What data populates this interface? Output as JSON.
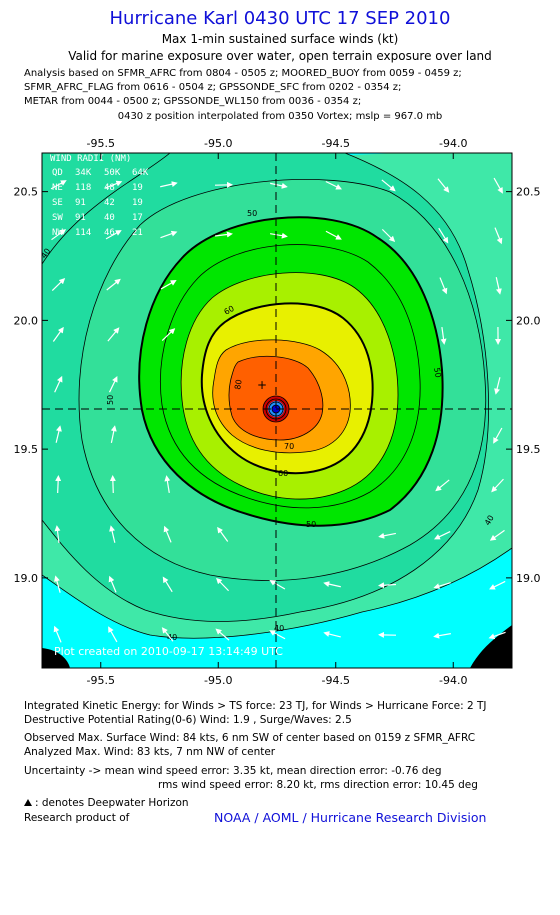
{
  "header": {
    "title": "Hurricane Karl 0430 UTC 17 SEP 2010",
    "subtitle1": "Max 1-min sustained surface winds (kt)",
    "subtitle2": "Valid for marine exposure over water, open terrain exposure over land"
  },
  "analysis_lines": [
    "Analysis based on SFMR_AFRC from 0804 - 0505 z; MOORED_BUOY from 0059 - 0459 z;",
    "SFMR_AFRC_FLAG from 0616 - 0504 z; GPSSONDE_SFC from 0202 - 0354 z;",
    "METAR from 0044 - 0500 z; GPSSONDE_WL150 from 0036 - 0354 z;"
  ],
  "position_line": "0430 z position interpolated from 0350 Vortex; mslp = 967.0 mb",
  "chart_data": {
    "type": "contour",
    "x_ticks": [
      "-95.5",
      "-95.0",
      "-94.5",
      "-94.0"
    ],
    "y_ticks": [
      "20.5",
      "20.0",
      "19.5",
      "19.0"
    ],
    "xlim": [
      -95.75,
      -93.75
    ],
    "ylim": [
      18.65,
      20.65
    ],
    "center": {
      "lon": -94.61,
      "lat": 19.67
    },
    "contour_labels": [
      "40",
      "40",
      "40",
      "40",
      "50",
      "50",
      "50",
      "60",
      "60",
      "70",
      "80"
    ],
    "contour_levels_kt": [
      30,
      40,
      50,
      60,
      64,
      70,
      80,
      90
    ],
    "fill_colors": {
      "30": "#00ffff",
      "40": "#3fe8a8",
      "50": "#00e600",
      "60": "#a8f000",
      "64": "#e8f000",
      "70": "#ffa500",
      "80": "#ff6000",
      "90": "#cc0000"
    },
    "wind_radii": {
      "title": "WIND RADII (NM)",
      "header": [
        "QD",
        "34K",
        "50K",
        "64K"
      ],
      "rows": [
        [
          "NE",
          "118",
          "48",
          "19"
        ],
        [
          "SE",
          "91",
          "42",
          "19"
        ],
        [
          "SW",
          "91",
          "40",
          "17"
        ],
        [
          "NW",
          "114",
          "46",
          "21"
        ]
      ]
    },
    "stamp": "Plot created on 2010-09-17 13:14:49 UTC"
  },
  "info": {
    "ike": "Integrated Kinetic Energy:  for Winds > TS force: 23 TJ,  for Winds > Hurricane Force: 2 TJ",
    "dpr": "Destructive Potential Rating(0-6)   Wind: 1.9 , Surge/Waves: 2.5",
    "obs_max": "Observed Max. Surface Wind: 84 kts, 6 nm SW of center based on 0159 z SFMR_AFRC",
    "ana_max": "Analyzed Max. Wind: 83 kts, 7 nm NW of center",
    "unc1": "Uncertainty -> mean wind speed error: 3.35 kt,   mean direction error:  -0.76 deg",
    "unc2": "rms wind speed error: 8.20 kt,   rms direction error: 10.45 deg",
    "deepwater": ": denotes Deepwater Horizon",
    "research": "Research product of",
    "noaa": "NOAA / AOML / Hurricane Research Division"
  }
}
